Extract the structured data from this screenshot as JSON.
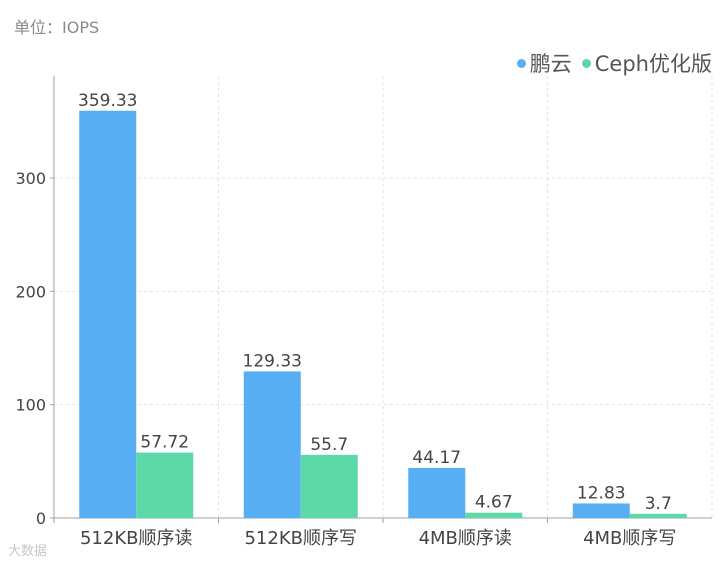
{
  "unit_label": "单位：IOPS",
  "watermark": "大数据",
  "colors": {
    "series_0": "#58aef2",
    "series_1": "#5dd8a8",
    "axis": "#a0a0a0",
    "grid": "#e2e2e2",
    "text": "#444444"
  },
  "chart_data": {
    "type": "bar",
    "categories": [
      "512KB顺序读",
      "512KB顺序写",
      "4MB顺序读",
      "4MB顺序写"
    ],
    "series": [
      {
        "name": "鹏云",
        "values": [
          359.33,
          129.33,
          44.17,
          12.83
        ],
        "labels": [
          "359.33",
          "129.33",
          "44.17",
          "12.83"
        ]
      },
      {
        "name": "Ceph优化版",
        "values": [
          57.72,
          55.7,
          4.67,
          3.7
        ],
        "labels": [
          "57.72",
          "55.7",
          "4.67",
          "3.7"
        ]
      }
    ],
    "yticks": [
      0,
      100,
      200,
      300
    ],
    "ylim": [
      0,
      390
    ],
    "grid": true,
    "legend_position": "top-right"
  }
}
